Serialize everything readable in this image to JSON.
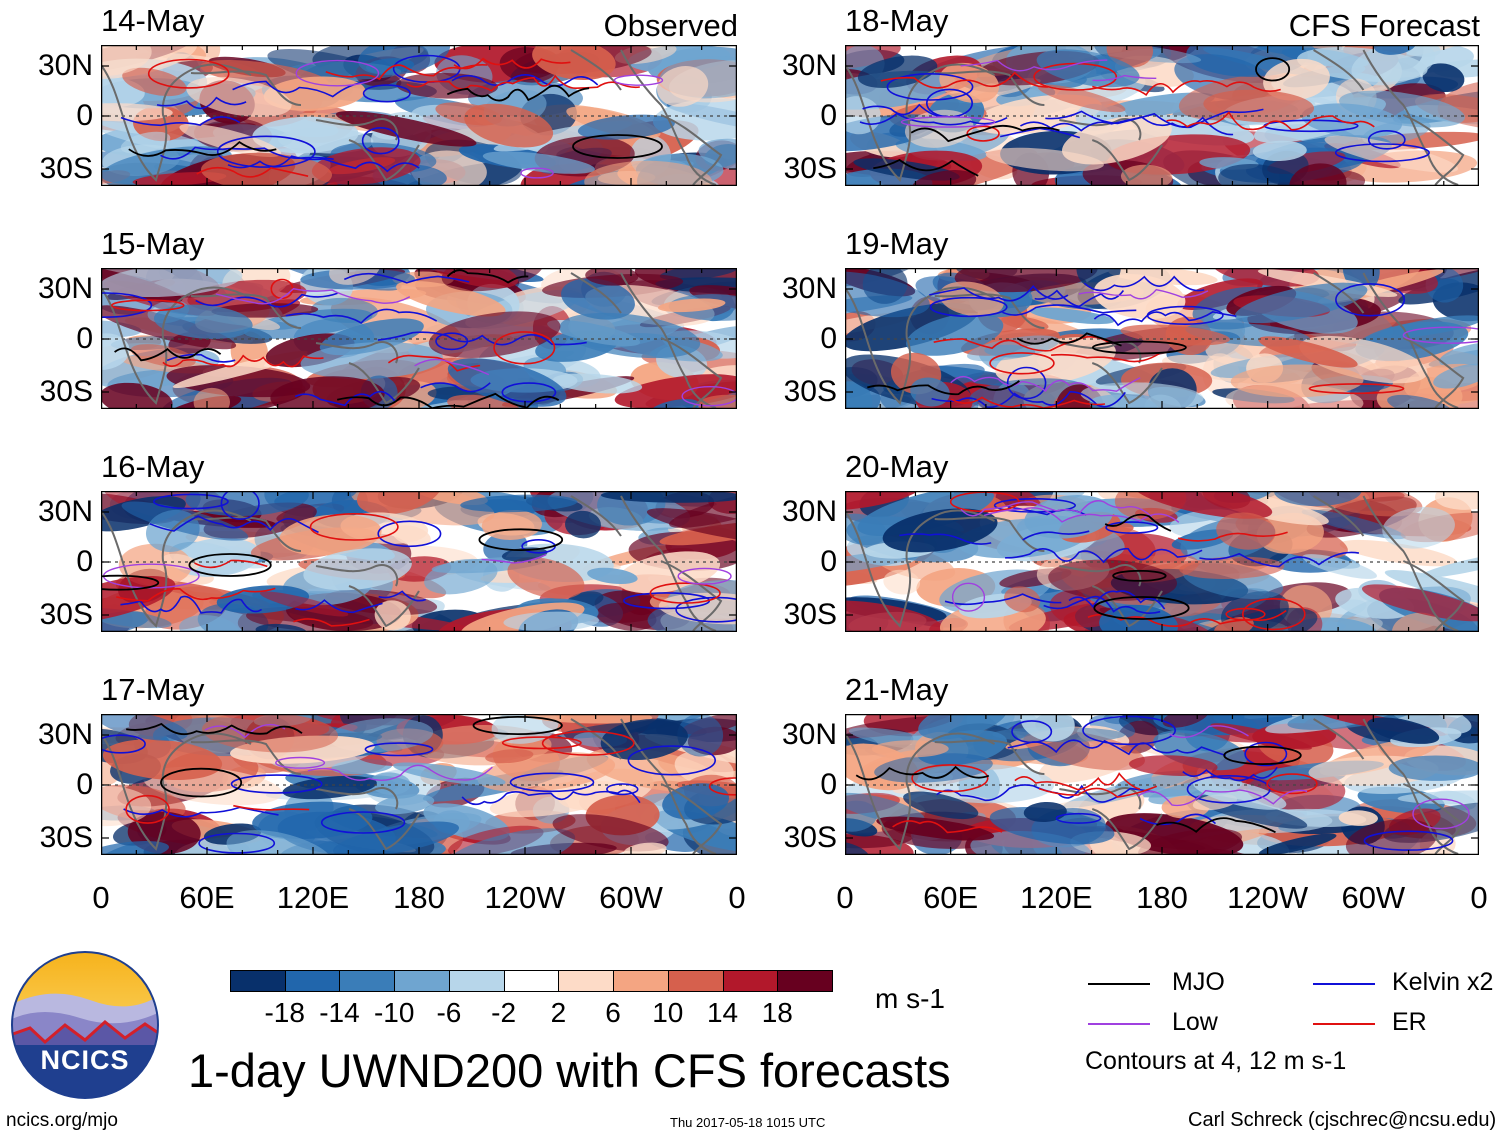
{
  "figure": {
    "title": "1-day UWND200 with CFS forecasts",
    "left_tag": "Observed",
    "right_tag": "CFS Forecast",
    "website": "ncics.org/mjo",
    "timestamp": "Thu 2017-05-18 1015 UTC",
    "credit": "Carl Schreck (cjschrec@ncsu.edu)",
    "logo_text": "NCICS",
    "units": "m s-1",
    "contour_note": "Contours at 4, 12 m s-1"
  },
  "chart_data": {
    "type": "heatmap",
    "variable": "200-hPa zonal wind anomaly",
    "panels": [
      {
        "date": "14-May",
        "source": "Observed"
      },
      {
        "date": "15-May",
        "source": "Observed"
      },
      {
        "date": "16-May",
        "source": "Observed"
      },
      {
        "date": "17-May",
        "source": "Observed"
      },
      {
        "date": "18-May",
        "source": "CFS Forecast"
      },
      {
        "date": "19-May",
        "source": "CFS Forecast"
      },
      {
        "date": "20-May",
        "source": "CFS Forecast"
      },
      {
        "date": "21-May",
        "source": "CFS Forecast"
      }
    ],
    "y_ticks": [
      "30N",
      "0",
      "30S"
    ],
    "x_ticks": [
      "0",
      "60E",
      "120E",
      "180",
      "120W",
      "60W",
      "0"
    ],
    "colorbar": {
      "ticks": [
        "-18",
        "-14",
        "-10",
        "-6",
        "-2",
        "2",
        "6",
        "10",
        "14",
        "18"
      ],
      "colors": [
        "#08306b",
        "#2166ac",
        "#3a7db8",
        "#6fa5d0",
        "#b7d6ea",
        "#ffffff",
        "#fddbc7",
        "#f4a582",
        "#d6604d",
        "#b2182b",
        "#67001f"
      ]
    },
    "contour_levels": [
      4,
      12
    ],
    "legend": [
      {
        "label": "MJO",
        "color": "#000000"
      },
      {
        "label": "Kelvin x2",
        "color": "#1010d8"
      },
      {
        "label": "Low",
        "color": "#a040e0"
      },
      {
        "label": "ER",
        "color": "#e01010"
      }
    ]
  }
}
